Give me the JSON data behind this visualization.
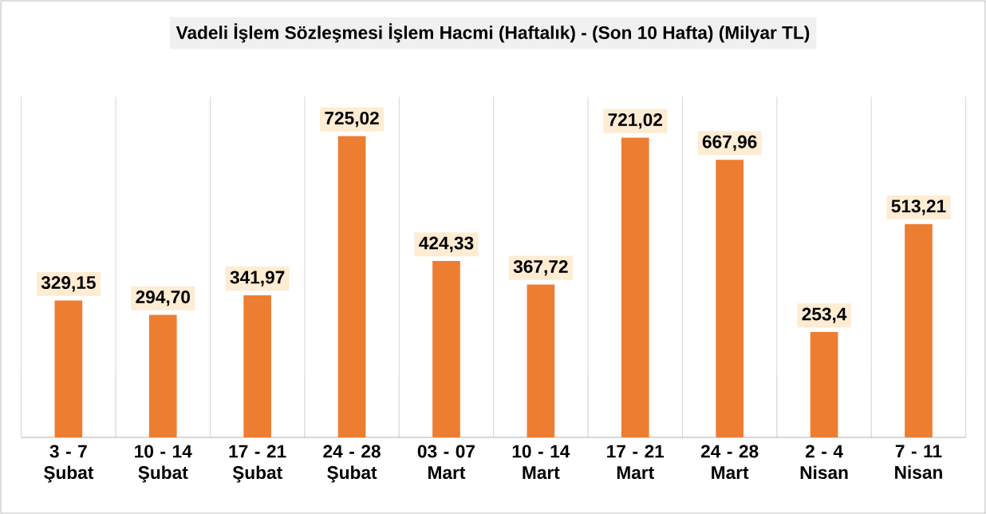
{
  "chart_data": {
    "type": "bar",
    "title": "Vadeli İşlem Sözleşmesi İşlem Hacmi (Haftalık) - (Son 10 Hafta) (Milyar TL)",
    "categories": [
      "3 - 7 Şubat",
      "10 - 14 Şubat",
      "17 - 21 Şubat",
      "24 - 28 Şubat",
      "03 - 07 Mart",
      "10 - 14 Mart",
      "17 - 21 Mart",
      "24 - 28 Mart",
      "2 - 4 Nisan",
      "7 - 11 Nisan"
    ],
    "values": [
      329.15,
      294.7,
      341.97,
      725.02,
      424.33,
      367.72,
      721.02,
      667.96,
      253.4,
      513.21
    ],
    "value_labels": [
      "329,15",
      "294,70",
      "341,97",
      "725,02",
      "424,33",
      "367,72",
      "721,02",
      "667,96",
      "253,4",
      "513,21"
    ],
    "color": "#ed7d31",
    "grid": "x",
    "tick_labels": "x"
  }
}
